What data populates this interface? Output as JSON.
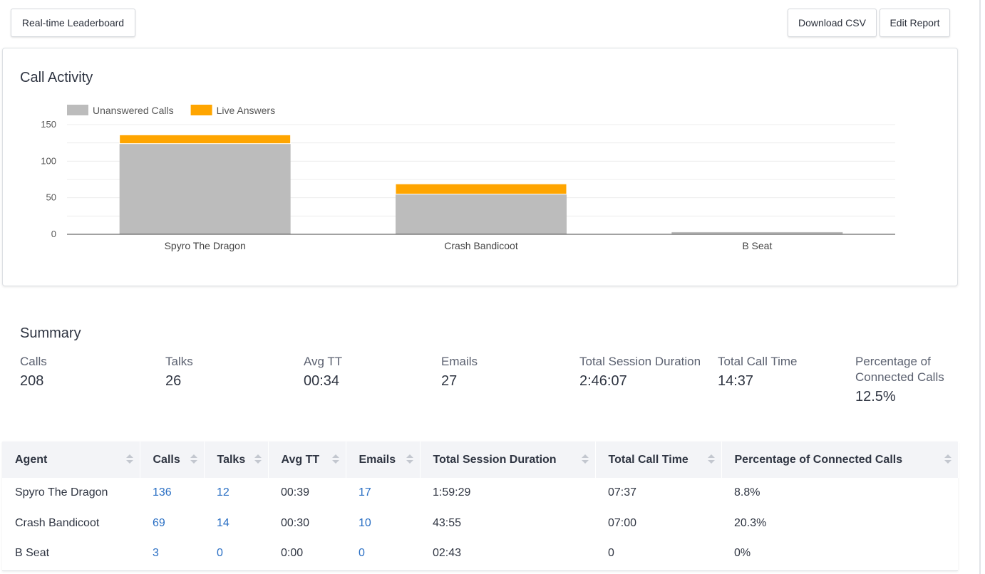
{
  "toolbar": {
    "leaderboard_label": "Real-time Leaderboard",
    "download_label": "Download CSV",
    "edit_label": "Edit Report"
  },
  "call_activity": {
    "title": "Call Activity"
  },
  "chart_data": {
    "type": "bar",
    "stacked": true,
    "categories": [
      "Spyro The Dragon",
      "Crash Bandicoot",
      "B Seat"
    ],
    "series": [
      {
        "name": "Unanswered Calls",
        "color": "#bcbcbc",
        "values": [
          124,
          55,
          3
        ]
      },
      {
        "name": "Live Answers",
        "color": "#ffa500",
        "values": [
          12,
          14,
          0
        ]
      }
    ],
    "yticks": [
      0,
      50,
      100,
      150
    ],
    "ylim": [
      0,
      150
    ],
    "grid": true,
    "legend": "top-left"
  },
  "summary": {
    "title": "Summary",
    "stats": [
      {
        "label": "Calls",
        "value": "208"
      },
      {
        "label": "Talks",
        "value": "26"
      },
      {
        "label": "Avg TT",
        "value": "00:34"
      },
      {
        "label": "Emails",
        "value": "27"
      },
      {
        "label": "Total Session Duration",
        "value": "2:46:07"
      },
      {
        "label": "Total Call Time",
        "value": "14:37"
      },
      {
        "label": "Percentage of Connected Calls",
        "value": "12.5%"
      }
    ]
  },
  "table": {
    "headers": [
      "Agent",
      "Calls",
      "Talks",
      "Avg TT",
      "Emails",
      "Total Session Duration",
      "Total Call Time",
      "Percentage of Connected Calls"
    ],
    "rows": [
      [
        "Spyro The Dragon",
        "136",
        "12",
        "00:39",
        "17",
        "1:59:29",
        "07:37",
        "8.8%"
      ],
      [
        "Crash Bandicoot",
        "69",
        "14",
        "00:30",
        "10",
        "43:55",
        "07:00",
        "20.3%"
      ],
      [
        "B Seat",
        "3",
        "0",
        "0:00",
        "0",
        "02:43",
        "0",
        "0%"
      ]
    ]
  }
}
